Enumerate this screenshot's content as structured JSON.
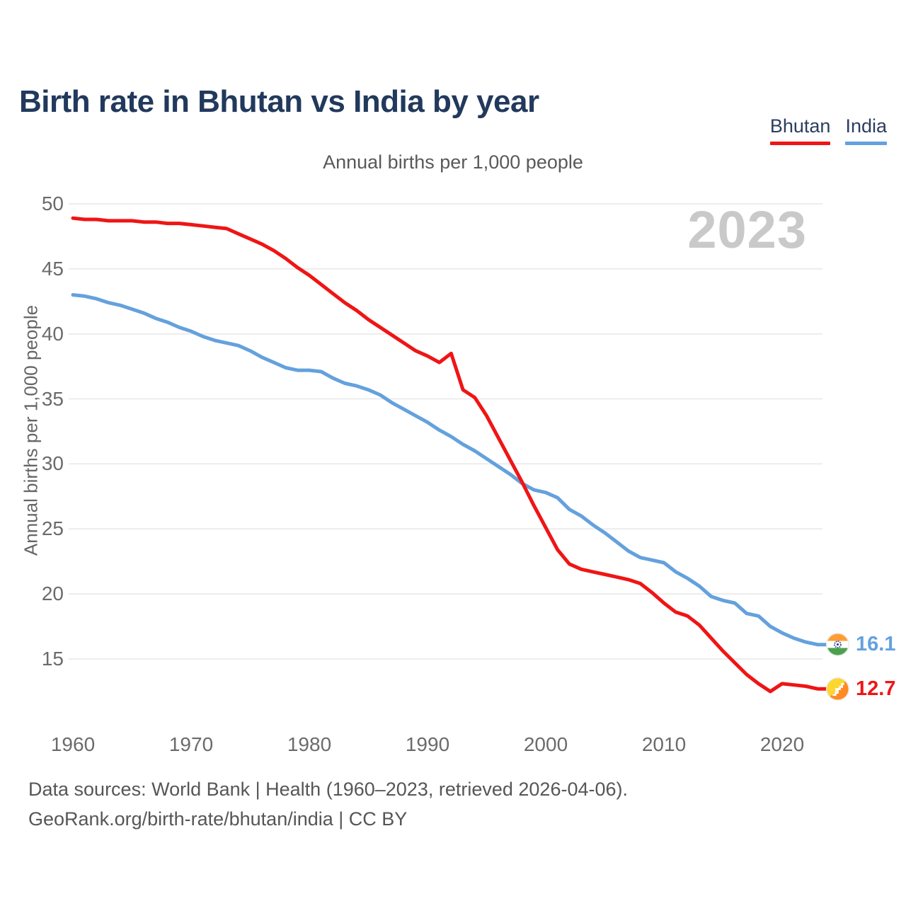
{
  "page": {
    "title": "Birth rate in Bhutan vs India by year"
  },
  "legend": {
    "items": [
      {
        "label": "Bhutan",
        "color": "#ef1515"
      },
      {
        "label": "India",
        "color": "#64a1dd"
      }
    ]
  },
  "subtitle": "Annual births per 1,000 people",
  "watermark": "2023",
  "y_axis_label": "Annual births per 1,000 people",
  "end_labels": [
    {
      "series": "India",
      "value": "16.1"
    },
    {
      "series": "Bhutan",
      "value": "12.7"
    }
  ],
  "footer": {
    "line1": "Data sources: World Bank | Health (1960–2023, retrieved 2026-04-06).",
    "line2": "GeoRank.org/birth-rate/bhutan/india | CC BY"
  },
  "chart_data": {
    "type": "line",
    "title": "Birth rate in Bhutan vs India by year",
    "subtitle": "Annual births per 1,000 people",
    "ylabel": "Annual births per 1,000 people",
    "xlabel": "",
    "ylim": [
      12,
      51
    ],
    "yticks": [
      15,
      20,
      25,
      30,
      35,
      40,
      45,
      50
    ],
    "xticks": [
      1960,
      1970,
      1980,
      1990,
      2000,
      2010,
      2020
    ],
    "grid": "horizontal",
    "legend_position": "top-right",
    "x": [
      1960,
      1961,
      1962,
      1963,
      1964,
      1965,
      1966,
      1967,
      1968,
      1969,
      1970,
      1971,
      1972,
      1973,
      1974,
      1975,
      1976,
      1977,
      1978,
      1979,
      1980,
      1981,
      1982,
      1983,
      1984,
      1985,
      1986,
      1987,
      1988,
      1989,
      1990,
      1991,
      1992,
      1993,
      1994,
      1995,
      1996,
      1997,
      1998,
      1999,
      2000,
      2001,
      2002,
      2003,
      2004,
      2005,
      2006,
      2007,
      2008,
      2009,
      2010,
      2011,
      2012,
      2013,
      2014,
      2015,
      2016,
      2017,
      2018,
      2019,
      2020,
      2021,
      2022,
      2023
    ],
    "series": [
      {
        "name": "Bhutan",
        "color": "#ef1515",
        "values": [
          48.9,
          48.8,
          48.8,
          48.7,
          48.7,
          48.7,
          48.6,
          48.6,
          48.5,
          48.5,
          48.4,
          48.3,
          48.2,
          48.1,
          47.7,
          47.3,
          46.9,
          46.4,
          45.8,
          45.1,
          44.5,
          43.8,
          43.1,
          42.4,
          41.8,
          41.1,
          40.5,
          39.9,
          39.3,
          38.7,
          38.3,
          37.8,
          38.5,
          35.7,
          35.1,
          33.7,
          32.0,
          30.3,
          28.6,
          26.8,
          25.1,
          23.4,
          22.3,
          21.9,
          21.7,
          21.5,
          21.3,
          21.1,
          20.8,
          20.1,
          19.3,
          18.6,
          18.3,
          17.6,
          16.6,
          15.6,
          14.7,
          13.8,
          13.1,
          12.5,
          13.1,
          13.0,
          12.9,
          12.7
        ]
      },
      {
        "name": "India",
        "color": "#64a1dd",
        "values": [
          43.0,
          42.9,
          42.7,
          42.4,
          42.2,
          41.9,
          41.6,
          41.2,
          40.9,
          40.5,
          40.2,
          39.8,
          39.5,
          39.3,
          39.1,
          38.7,
          38.2,
          37.8,
          37.4,
          37.2,
          37.2,
          37.1,
          36.6,
          36.2,
          36.0,
          35.7,
          35.3,
          34.7,
          34.2,
          33.7,
          33.2,
          32.6,
          32.1,
          31.5,
          31.0,
          30.4,
          29.8,
          29.2,
          28.5,
          28.0,
          27.8,
          27.4,
          26.5,
          26.0,
          25.3,
          24.7,
          24.0,
          23.3,
          22.8,
          22.6,
          22.4,
          21.7,
          21.2,
          20.6,
          19.8,
          19.5,
          19.3,
          18.5,
          18.3,
          17.5,
          17.0,
          16.6,
          16.3,
          16.1
        ]
      }
    ],
    "end_marker_values": {
      "Bhutan": 12.7,
      "India": 16.1
    }
  }
}
